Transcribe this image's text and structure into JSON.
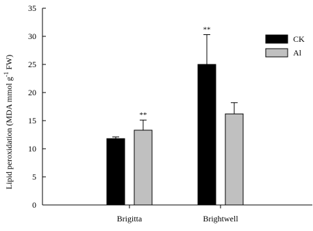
{
  "chart_data": {
    "type": "bar",
    "title": "",
    "xlabel": "",
    "ylabel": {
      "main": "Lipid peroxidation (MDA mmol g",
      "superscript": "-1",
      "tail": " FW)"
    },
    "ylim": [
      0,
      35
    ],
    "yticks": [
      0,
      5,
      10,
      15,
      20,
      25,
      30,
      35
    ],
    "categories": [
      "Brigitta",
      "Brightwell"
    ],
    "series": [
      {
        "name": "CK",
        "color": "#000000",
        "values": [
          11.8,
          25.0
        ],
        "errors": [
          0.3,
          5.3
        ],
        "annotations": [
          "",
          "**"
        ]
      },
      {
        "name": "Al",
        "color": "#c0c0c0",
        "values": [
          13.3,
          16.2
        ],
        "errors": [
          1.8,
          2.0
        ],
        "annotations": [
          "**",
          ""
        ]
      }
    ],
    "legend_position": "top-right",
    "grid": false
  }
}
